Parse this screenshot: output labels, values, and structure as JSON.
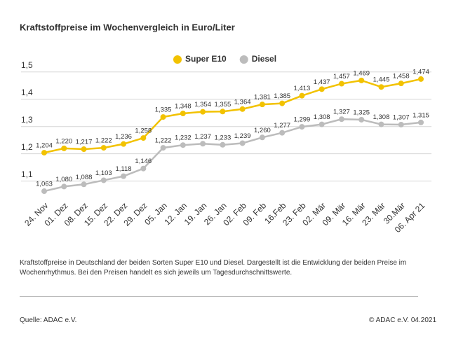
{
  "chart_data": {
    "type": "line",
    "title": "Kraftstoffpreise im Wochenvergleich in Euro/Liter",
    "categories": [
      "24. Nov",
      "01. Dez",
      "08. Dez",
      "15. Dez",
      "22. Dez",
      "29. Dez",
      "05. Jan",
      "12. Jan",
      "19. Jan",
      "26. Jan",
      "02. Feb",
      "09. Feb",
      "16.Feb",
      "23. Feb",
      "02. Mär",
      "09. Mär",
      "16. Mär",
      "23. Mär",
      "30.Mär",
      "06. Apr 21"
    ],
    "series": [
      {
        "name": "Super E10",
        "color": "#f2c200",
        "values": [
          1.204,
          1.22,
          1.217,
          1.222,
          1.236,
          1.258,
          1.335,
          1.348,
          1.354,
          1.355,
          1.364,
          1.381,
          1.385,
          1.413,
          1.437,
          1.457,
          1.469,
          1.445,
          1.458,
          1.474
        ],
        "value_labels": [
          "1,204",
          "1,220",
          "1,217",
          "1,222",
          "1,236",
          "1,258",
          "1,335",
          "1,348",
          "1,354",
          "1,355",
          "1,364",
          "1,381",
          "1,385",
          "1,413",
          "1,437",
          "1,457",
          "1,469",
          "1,445",
          "1,458",
          "1,474"
        ]
      },
      {
        "name": "Diesel",
        "color": "#bcbcbc",
        "values": [
          1.063,
          1.08,
          1.088,
          1.103,
          1.118,
          1.146,
          1.222,
          1.232,
          1.237,
          1.233,
          1.239,
          1.26,
          1.277,
          1.299,
          1.308,
          1.327,
          1.325,
          1.308,
          1.307,
          1.315
        ],
        "value_labels": [
          "1,063",
          "1,080",
          "1,088",
          "1,103",
          "1,118",
          "1,146",
          "1,222",
          "1,232",
          "1,237",
          "1,233",
          "1,239",
          "1,260",
          "1,277",
          "1,299",
          "1,308",
          "1,327",
          "1,325",
          "1,308",
          "1,307",
          "1,315"
        ]
      }
    ],
    "ylim": [
      1.04,
      1.52
    ],
    "yticks": [
      {
        "value": 1.1,
        "label": "1,1"
      },
      {
        "value": 1.2,
        "label": "1,2"
      },
      {
        "value": 1.3,
        "label": "1,3"
      },
      {
        "value": 1.4,
        "label": "1,4"
      },
      {
        "value": 1.5,
        "label": "1,5"
      }
    ],
    "grid": true,
    "legend": "top"
  },
  "footer": {
    "description": "Kraftstoffpreise in Deutschland der beiden Sorten Super E10 und Diesel. Dargestellt ist die Entwicklung der beiden Preise im Wochenrhythmus. Bei den Preisen handelt es sich jeweils um Tagesdurchschnittswerte.",
    "source": "Quelle: ADAC e.V.",
    "copyright": "© ADAC e.V. 04.2021"
  }
}
